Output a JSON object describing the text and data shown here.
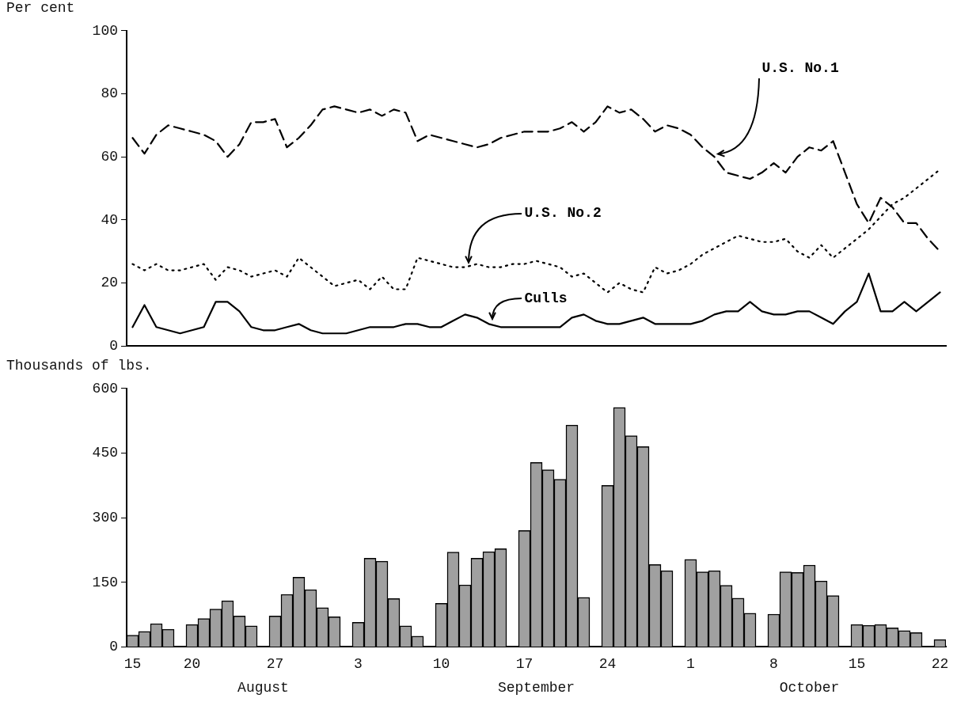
{
  "chart_data": [
    {
      "type": "line",
      "ylabel": "Per cent",
      "ylim": [
        0,
        100
      ],
      "yticks": [
        0,
        20,
        40,
        60,
        80,
        100
      ],
      "tick_labels": "y",
      "categories": [
        "15",
        null,
        null,
        null,
        null,
        "20",
        null,
        null,
        null,
        null,
        null,
        null,
        "27",
        null,
        null,
        null,
        null,
        null,
        null,
        "3",
        null,
        null,
        null,
        null,
        null,
        null,
        "10",
        null,
        null,
        null,
        null,
        null,
        null,
        "17",
        null,
        null,
        null,
        null,
        null,
        null,
        "24",
        null,
        null,
        null,
        null,
        null,
        null,
        "1",
        null,
        null,
        null,
        null,
        null,
        null,
        "8",
        null,
        null,
        null,
        null,
        null,
        null,
        "15",
        null,
        null,
        null,
        null,
        null,
        null,
        "22"
      ],
      "series": [
        {
          "name": "U.S. No.1",
          "color": "#000000",
          "line_style": "dashed",
          "values": [
            66,
            61,
            67,
            70,
            69,
            68,
            67,
            65,
            60,
            64,
            71,
            71,
            72,
            63,
            66,
            70,
            75,
            76,
            75,
            74,
            75,
            73,
            75,
            74,
            65,
            67,
            66,
            65,
            64,
            63,
            64,
            66,
            67,
            68,
            68,
            68,
            69,
            71,
            68,
            71,
            76,
            74,
            75,
            72,
            68,
            70,
            69,
            67,
            63,
            60,
            55,
            54,
            53,
            55,
            58,
            55,
            60,
            63,
            62,
            65,
            55,
            45,
            39,
            47,
            44,
            39,
            39,
            34,
            30
          ]
        },
        {
          "name": "U.S. No.2",
          "color": "#000000",
          "line_style": "dotted",
          "values": [
            26,
            24,
            26,
            24,
            24,
            25,
            26,
            21,
            25,
            24,
            22,
            23,
            24,
            22,
            28,
            25,
            22,
            19,
            20,
            21,
            18,
            22,
            18,
            18,
            28,
            27,
            26,
            25,
            25,
            26,
            25,
            25,
            26,
            26,
            27,
            26,
            25,
            22,
            23,
            20,
            17,
            20,
            18,
            17,
            25,
            23,
            24,
            26,
            29,
            31,
            33,
            35,
            34,
            33,
            33,
            34,
            30,
            28,
            32,
            28,
            31,
            34,
            37,
            41,
            45,
            47,
            50,
            53,
            56
          ]
        },
        {
          "name": "Culls",
          "color": "#000000",
          "line_style": "solid",
          "values": [
            6,
            13,
            6,
            5,
            4,
            5,
            6,
            14,
            14,
            11,
            6,
            5,
            5,
            6,
            7,
            5,
            4,
            4,
            4,
            5,
            6,
            6,
            6,
            7,
            7,
            6,
            6,
            8,
            10,
            9,
            7,
            6,
            6,
            6,
            6,
            6,
            6,
            9,
            10,
            8,
            7,
            7,
            8,
            9,
            7,
            7,
            7,
            7,
            8,
            10,
            11,
            11,
            14,
            11,
            10,
            10,
            11,
            11,
            9,
            7,
            11,
            14,
            23,
            11,
            11,
            14,
            11,
            14,
            17
          ]
        }
      ]
    },
    {
      "type": "bar",
      "ylabel": "Thousands of lbs.",
      "ylim": [
        0,
        600
      ],
      "yticks": [
        0,
        150,
        300,
        450,
        600
      ],
      "color": "#a0a0a0",
      "categories": [
        "15",
        null,
        null,
        null,
        null,
        "20",
        null,
        null,
        null,
        null,
        null,
        null,
        "27",
        null,
        null,
        null,
        null,
        null,
        null,
        "3",
        null,
        null,
        null,
        null,
        null,
        null,
        "10",
        null,
        null,
        null,
        null,
        null,
        null,
        "17",
        null,
        null,
        null,
        null,
        null,
        null,
        "24",
        null,
        null,
        null,
        null,
        null,
        null,
        "1",
        null,
        null,
        null,
        null,
        null,
        null,
        "8",
        null,
        null,
        null,
        null,
        null,
        null,
        "15",
        null,
        null,
        null,
        null,
        null,
        null,
        "22"
      ],
      "values": [
        27,
        36,
        54,
        41,
        null,
        52,
        66,
        88,
        107,
        72,
        49,
        null,
        72,
        122,
        162,
        133,
        91,
        70,
        null,
        57,
        206,
        199,
        112,
        49,
        25,
        null,
        101,
        220,
        144,
        206,
        221,
        228,
        null,
        270,
        428,
        411,
        389,
        515,
        115,
        null,
        375,
        556,
        490,
        465,
        191,
        177,
        null,
        203,
        174,
        177,
        143,
        113,
        78,
        null,
        76,
        174,
        173,
        190,
        153,
        119,
        null,
        52,
        50,
        52,
        44,
        38,
        33,
        null,
        17
      ],
      "annotations": [
        "August",
        "September",
        "October"
      ]
    }
  ]
}
